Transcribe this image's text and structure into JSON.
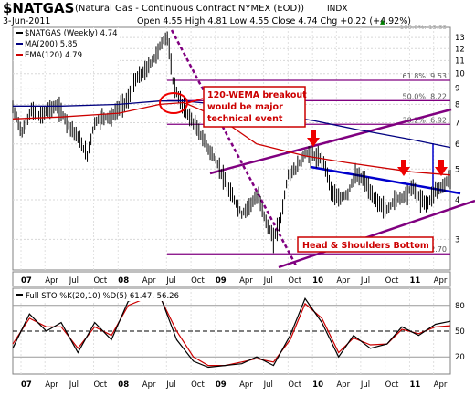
{
  "header": {
    "symbol": "$NATGAS",
    "description": "(Natural Gas - Continuous Contract NYMEX (EOD))",
    "exchange": "INDX",
    "date": "3-Jun-2011",
    "ohlc_text": "Open 4.55 High 4.81 Low 4.55 Close 4.74 Chg +0.22 (+4.92%)",
    "up_arrow": "▲"
  },
  "legend": {
    "price_label": "$NATGAS (Weekly) 4.74",
    "ma_label": "MA(200) 5.85",
    "ema_label": "EMA(120) 4.79"
  },
  "annotations": {
    "breakout_line1": "120-WEMA breakout",
    "breakout_line2": "would be major",
    "breakout_line3": "technical event",
    "hs_label": "Head & Shoulders Bottom"
  },
  "fib_labels": [
    "61.8%: 9.53",
    "50.0%: 8.22",
    "38.2%: 6.92",
    "0.0%: 2.70"
  ],
  "fib_values": [
    9.53,
    8.22,
    6.92,
    2.7
  ],
  "fib_top_label": "100.0%: 13.33",
  "lower_panel": {
    "label": "Full STO %K(20,10) %D(5) 61.47, 56.26"
  },
  "x_axis": {
    "labels": [
      "07",
      "Apr",
      "Jul",
      "Oct",
      "08",
      "Apr",
      "Jul",
      "Oct",
      "09",
      "Apr",
      "Jul",
      "Oct",
      "10",
      "Apr",
      "Jul",
      "Oct",
      "11",
      "Apr"
    ],
    "bold_labels": [
      "07",
      "08",
      "09",
      "10",
      "11"
    ]
  },
  "y_axis": {
    "labels": [
      "13",
      "12",
      "11",
      "10",
      "9",
      "8",
      "7",
      "6",
      "5",
      "4",
      "3"
    ],
    "values": [
      13,
      12,
      11,
      10,
      9,
      8,
      7,
      6,
      5,
      4,
      3
    ],
    "scale": "log"
  },
  "sto_axis": {
    "labels": [
      "80",
      "50",
      "20"
    ],
    "values": [
      80,
      50,
      20
    ]
  },
  "colors": {
    "price": "#000000",
    "ma200": "#000080",
    "ema120": "#cc0000",
    "trendline": "#800080",
    "neckline": "#0000cc",
    "fib": "#800080",
    "arrow": "#ee0000",
    "annotation_border": "#cc0000",
    "sto_k": "#000000",
    "sto_d": "#cc0000"
  },
  "chart_data": {
    "type": "line",
    "x_axis_type": "date",
    "x_range": [
      "2006-12-01",
      "2011-06-03"
    ],
    "y_range": [
      2.4,
      14.0
    ],
    "y_scale": "log",
    "series": [
      {
        "name": "$NATGAS (Weekly) 4.74",
        "x": [
          "2006-12-01",
          "2007-01-05",
          "2007-02-09",
          "2007-03-09",
          "2007-04-13",
          "2007-05-18",
          "2007-06-29",
          "2007-08-03",
          "2007-09-07",
          "2007-10-05",
          "2007-11-02",
          "2007-12-07",
          "2008-01-04",
          "2008-02-08",
          "2008-03-07",
          "2008-04-11",
          "2008-05-16",
          "2008-06-13",
          "2008-07-03",
          "2008-07-25",
          "2008-08-15",
          "2008-09-12",
          "2008-10-10",
          "2008-11-07",
          "2008-12-05",
          "2009-01-09",
          "2009-02-13",
          "2009-03-13",
          "2009-04-10",
          "2009-05-15",
          "2009-06-12",
          "2009-07-10",
          "2009-08-07",
          "2009-09-04",
          "2009-10-02",
          "2009-10-30",
          "2009-12-04",
          "2010-01-08",
          "2010-02-12",
          "2010-03-12",
          "2010-04-09",
          "2010-05-14",
          "2010-06-11",
          "2010-07-16",
          "2010-08-13",
          "2010-09-10",
          "2010-10-08",
          "2010-11-05",
          "2010-12-10",
          "2011-01-14",
          "2011-02-11",
          "2011-03-11",
          "2011-04-08",
          "2011-05-06",
          "2011-06-03"
        ],
        "values": [
          7.8,
          6.5,
          7.7,
          7.3,
          7.7,
          7.9,
          6.9,
          6.3,
          5.5,
          7.0,
          7.3,
          7.3,
          7.8,
          8.3,
          9.6,
          10.2,
          11.2,
          12.5,
          13.2,
          9.5,
          8.4,
          7.6,
          7.0,
          6.4,
          5.8,
          5.2,
          4.4,
          4.0,
          3.6,
          3.9,
          4.1,
          3.4,
          3.0,
          3.5,
          4.8,
          5.0,
          5.6,
          5.5,
          5.3,
          4.3,
          4.0,
          4.2,
          4.8,
          4.6,
          4.1,
          3.9,
          3.7,
          4.0,
          4.1,
          4.4,
          4.0,
          3.9,
          4.3,
          4.4,
          4.74
        ]
      },
      {
        "name": "MA(200) 5.85",
        "x": [
          "2006-12-01",
          "2007-06-01",
          "2008-01-04",
          "2008-06-06",
          "2008-09-05",
          "2009-01-09",
          "2009-06-05",
          "2010-01-08",
          "2010-06-04",
          "2011-01-07",
          "2011-06-03"
        ],
        "values": [
          7.9,
          7.9,
          8.0,
          8.2,
          8.2,
          8.0,
          7.6,
          7.1,
          6.7,
          6.2,
          5.85
        ]
      },
      {
        "name": "EMA(120) 4.79",
        "x": [
          "2006-12-01",
          "2007-06-01",
          "2008-01-04",
          "2008-06-06",
          "2008-09-05",
          "2009-01-09",
          "2009-06-05",
          "2009-12-04",
          "2010-06-04",
          "2011-01-07",
          "2011-06-03"
        ],
        "values": [
          7.2,
          7.3,
          7.5,
          8.0,
          8.1,
          7.3,
          6.0,
          5.5,
          5.2,
          4.9,
          4.79
        ]
      }
    ],
    "stochastic": {
      "y_range": [
        0,
        100
      ],
      "ticks": [
        20,
        50,
        80
      ],
      "series": [
        {
          "name": "%K(20,10)",
          "x": [
            "2006-12-01",
            "2007-02-02",
            "2007-04-06",
            "2007-06-01",
            "2007-08-03",
            "2007-10-05",
            "2007-12-07",
            "2008-02-08",
            "2008-04-11",
            "2008-06-06",
            "2008-08-08",
            "2008-10-10",
            "2008-12-05",
            "2009-02-06",
            "2009-04-10",
            "2009-06-05",
            "2009-08-07",
            "2009-10-09",
            "2009-12-04",
            "2010-02-05",
            "2010-04-09",
            "2010-06-04",
            "2010-08-06",
            "2010-10-08",
            "2010-12-03",
            "2011-02-04",
            "2011-04-08",
            "2011-06-03"
          ],
          "values": [
            30,
            70,
            50,
            60,
            25,
            60,
            40,
            85,
            90,
            92,
            40,
            15,
            8,
            10,
            12,
            20,
            10,
            45,
            88,
            60,
            20,
            45,
            30,
            35,
            55,
            45,
            58,
            61.47
          ]
        },
        {
          "name": "%D(5)",
          "x": [
            "2006-12-01",
            "2007-02-02",
            "2007-04-06",
            "2007-06-01",
            "2007-08-03",
            "2007-10-05",
            "2007-12-07",
            "2008-02-08",
            "2008-04-11",
            "2008-06-06",
            "2008-08-08",
            "2008-10-10",
            "2008-12-05",
            "2009-02-06",
            "2009-04-10",
            "2009-06-05",
            "2009-08-07",
            "2009-10-09",
            "2009-12-04",
            "2010-02-05",
            "2010-04-09",
            "2010-06-04",
            "2010-08-06",
            "2010-10-08",
            "2010-12-03",
            "2011-02-04",
            "2011-04-08",
            "2011-06-03"
          ],
          "values": [
            35,
            65,
            55,
            55,
            30,
            55,
            45,
            80,
            88,
            90,
            50,
            20,
            10,
            10,
            14,
            18,
            14,
            40,
            82,
            65,
            25,
            42,
            34,
            35,
            52,
            47,
            55,
            56.26
          ]
        }
      ]
    }
  }
}
